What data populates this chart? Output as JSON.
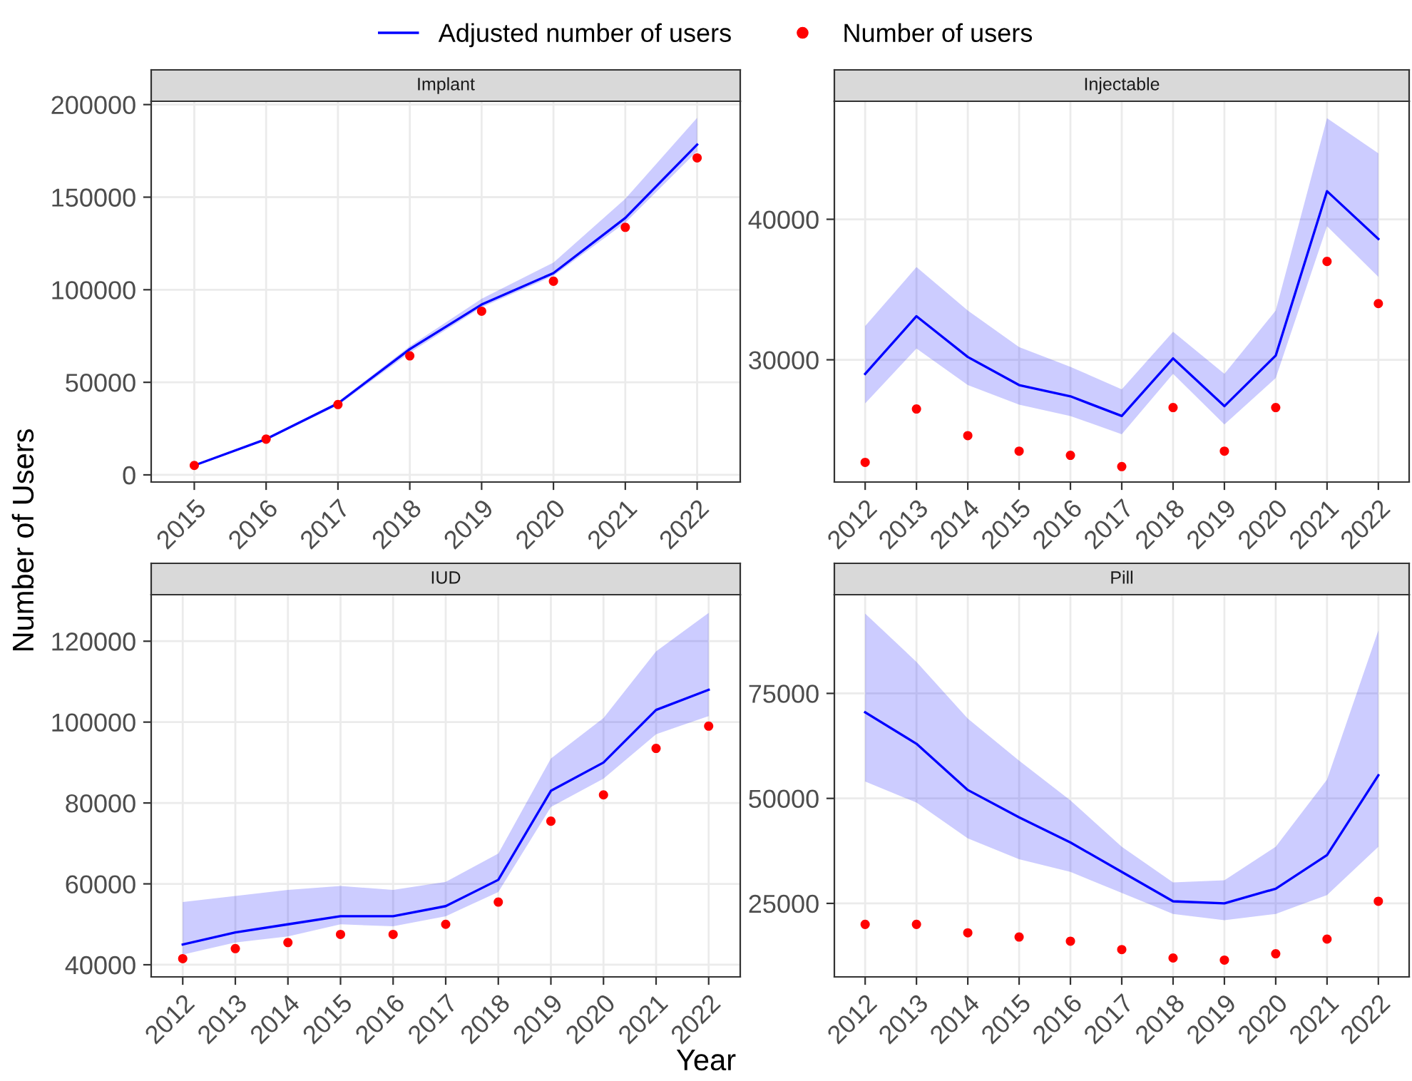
{
  "chart_data": [
    {
      "type": "line",
      "title": "Implant",
      "ylabel": "Number of Users",
      "categories": [
        "2015",
        "2016",
        "2017",
        "2018",
        "2019",
        "2020",
        "2021",
        "2022"
      ],
      "ylim": [
        -3860,
        201800
      ],
      "yticks": [
        0,
        50000,
        100000,
        150000,
        200000
      ],
      "grid": true,
      "legend": "top",
      "series": [
        {
          "name": "Adjusted number of users",
          "color": "#0000ff",
          "marker": "none",
          "values": [
            5100,
            19300,
            38600,
            67900,
            92000,
            109000,
            138800,
            178400
          ],
          "lower": [
            4900,
            18800,
            37500,
            66000,
            90500,
            107500,
            136200,
            174800
          ],
          "upper": [
            5300,
            19800,
            39500,
            69500,
            95100,
            114700,
            149100,
            192800
          ]
        },
        {
          "name": "Number of users",
          "type": "scatter",
          "color": "#ff0000",
          "marker": "circle",
          "values": [
            5100,
            19300,
            38000,
            64300,
            88400,
            104600,
            133700,
            171200
          ]
        }
      ]
    },
    {
      "type": "line",
      "title": "Injectable",
      "categories": [
        "2012",
        "2013",
        "2014",
        "2015",
        "2016",
        "2017",
        "2018",
        "2019",
        "2020",
        "2021",
        "2022"
      ],
      "ylim": [
        21300,
        48400
      ],
      "yticks": [
        30000,
        40000
      ],
      "grid": true,
      "series": [
        {
          "name": "Adjusted number of users",
          "color": "#0000ff",
          "marker": "none",
          "values": [
            29000,
            33100,
            30200,
            28200,
            27400,
            26000,
            30100,
            26700,
            30300,
            42000,
            38600
          ],
          "lower": [
            26900,
            30800,
            28200,
            26800,
            26000,
            24700,
            29000,
            25400,
            28700,
            39500,
            35900
          ],
          "upper": [
            32400,
            36600,
            33500,
            30900,
            29500,
            27900,
            32000,
            29000,
            33500,
            47200,
            44700
          ]
        },
        {
          "name": "Number of users",
          "type": "scatter",
          "color": "#ff0000",
          "marker": "circle",
          "values": [
            22700,
            26500,
            24600,
            23500,
            23200,
            22400,
            26600,
            23500,
            26600,
            37000,
            34000
          ]
        }
      ]
    },
    {
      "type": "line",
      "title": "IUD",
      "categories": [
        "2012",
        "2013",
        "2014",
        "2015",
        "2016",
        "2017",
        "2018",
        "2019",
        "2020",
        "2021",
        "2022"
      ],
      "ylim": [
        37000,
        131500
      ],
      "yticks": [
        40000,
        60000,
        80000,
        100000,
        120000
      ],
      "grid": true,
      "series": [
        {
          "name": "Adjusted number of users",
          "color": "#0000ff",
          "marker": "none",
          "values": [
            45000,
            48000,
            50000,
            52000,
            52000,
            54500,
            61000,
            83000,
            90000,
            103000,
            108000
          ],
          "lower": [
            42500,
            45500,
            47000,
            50000,
            49500,
            52000,
            58000,
            79000,
            86000,
            97000,
            101500
          ],
          "upper": [
            55500,
            57000,
            58500,
            59500,
            58500,
            60500,
            67500,
            91000,
            101000,
            117500,
            127000
          ]
        },
        {
          "name": "Number of users",
          "type": "scatter",
          "color": "#ff0000",
          "marker": "circle",
          "values": [
            41500,
            44000,
            45500,
            47500,
            47500,
            50000,
            55500,
            75500,
            82000,
            93500,
            99000
          ]
        }
      ]
    },
    {
      "type": "line",
      "title": "Pill",
      "xlabel": "Year",
      "categories": [
        "2012",
        "2013",
        "2014",
        "2015",
        "2016",
        "2017",
        "2018",
        "2019",
        "2020",
        "2021",
        "2022"
      ],
      "ylim": [
        7500,
        98500
      ],
      "yticks": [
        25000,
        50000,
        75000
      ],
      "grid": true,
      "series": [
        {
          "name": "Adjusted number of users",
          "color": "#0000ff",
          "marker": "none",
          "values": [
            70500,
            63000,
            52000,
            45500,
            39500,
            32500,
            25500,
            25000,
            28500,
            36500,
            55500
          ],
          "lower": [
            54000,
            49000,
            40500,
            35500,
            32500,
            27500,
            22500,
            21000,
            22500,
            27000,
            38500
          ],
          "upper": [
            94000,
            82500,
            69000,
            59000,
            49500,
            38500,
            30000,
            30500,
            38500,
            54500,
            90000
          ]
        },
        {
          "name": "Number of users",
          "type": "scatter",
          "color": "#ff0000",
          "marker": "circle",
          "values": [
            20000,
            20000,
            18000,
            17000,
            16000,
            14000,
            12000,
            11500,
            13000,
            16500,
            25500
          ]
        }
      ]
    }
  ]
}
